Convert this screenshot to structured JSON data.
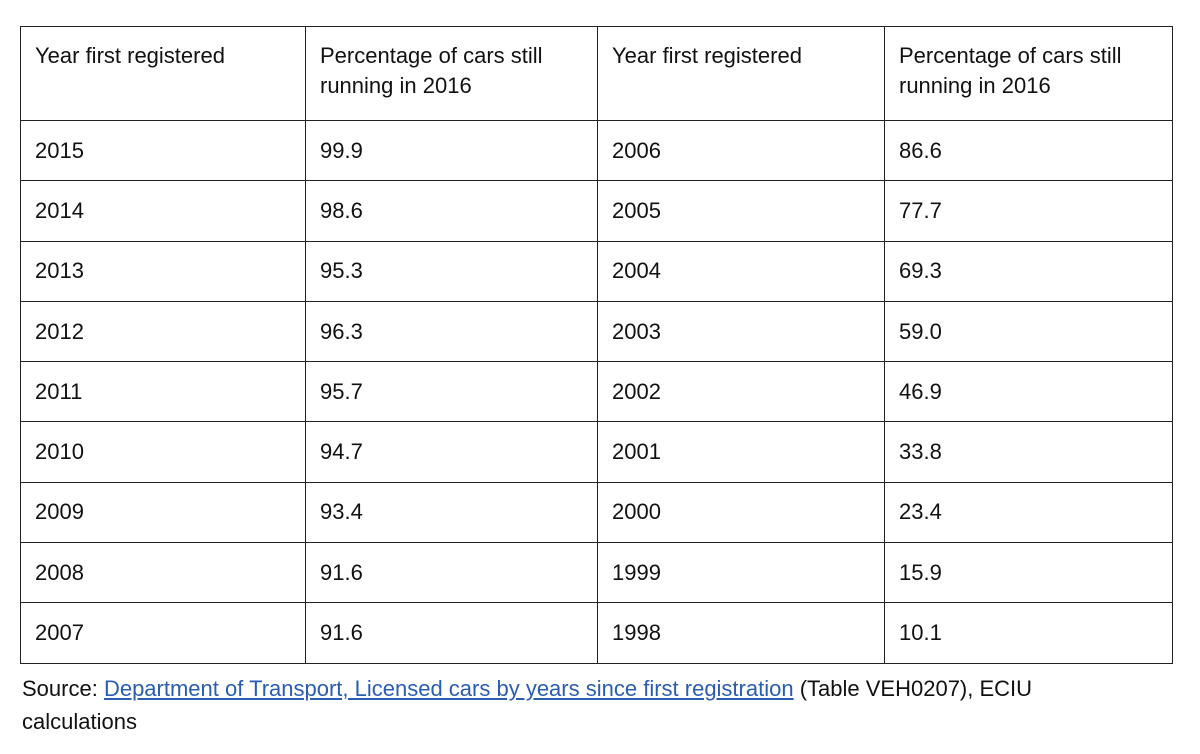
{
  "table": {
    "header": [
      "Year first registered",
      "Percentage of cars still running in 2016",
      "Year first registered",
      "Percentage of cars still running in 2016"
    ],
    "rows": [
      [
        "2015",
        "99.9",
        "2006",
        "86.6"
      ],
      [
        "2014",
        "98.6",
        "2005",
        "77.7"
      ],
      [
        "2013",
        "95.3",
        "2004",
        "69.3"
      ],
      [
        "2012",
        "96.3",
        "2003",
        "59.0"
      ],
      [
        "2011",
        "95.7",
        "2002",
        "46.9"
      ],
      [
        "2010",
        "94.7",
        "2001",
        "33.8"
      ],
      [
        "2009",
        "93.4",
        "2000",
        "23.4"
      ],
      [
        "2008",
        "91.6",
        "1999",
        "15.9"
      ],
      [
        "2007",
        "91.6",
        "1998",
        "10.1"
      ]
    ]
  },
  "source": {
    "prefix": "Source:",
    "link": "Department of Transport, Licensed cars by years since first registration",
    "suffix": "(Table VEH0207), ECIU calculations"
  }
}
